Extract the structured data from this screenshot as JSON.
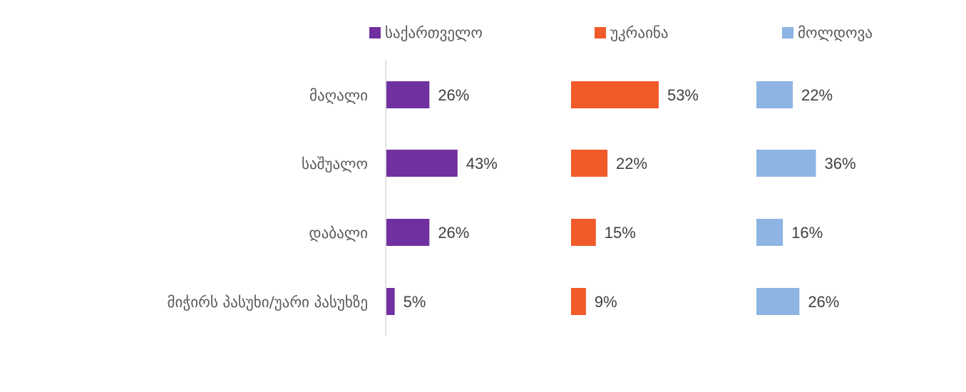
{
  "chart_data": {
    "type": "bar",
    "orientation": "horizontal",
    "layout": "small-multiples",
    "categories": [
      "მაღალი",
      "საშუალო",
      "დაბალი",
      "მიჭირს პასუხი/უარი პასუხზე"
    ],
    "series": [
      {
        "name": "საქართველო",
        "values": [
          26,
          43,
          26,
          5
        ],
        "value_labels": [
          "26%",
          "43%",
          "26%",
          "5%"
        ],
        "color": "#7030a0"
      },
      {
        "name": "უკრაინა",
        "values": [
          53,
          22,
          15,
          9
        ],
        "value_labels": [
          "53%",
          "22%",
          "15%",
          "9%"
        ],
        "color": "#f15a29"
      },
      {
        "name": "მოლდოვა",
        "values": [
          22,
          36,
          16,
          26
        ],
        "value_labels": [
          "22%",
          "36%",
          "16%",
          "26%"
        ],
        "color": "#8db4e2"
      }
    ],
    "value_unit": "%",
    "legend_position": "top",
    "grid": false
  }
}
